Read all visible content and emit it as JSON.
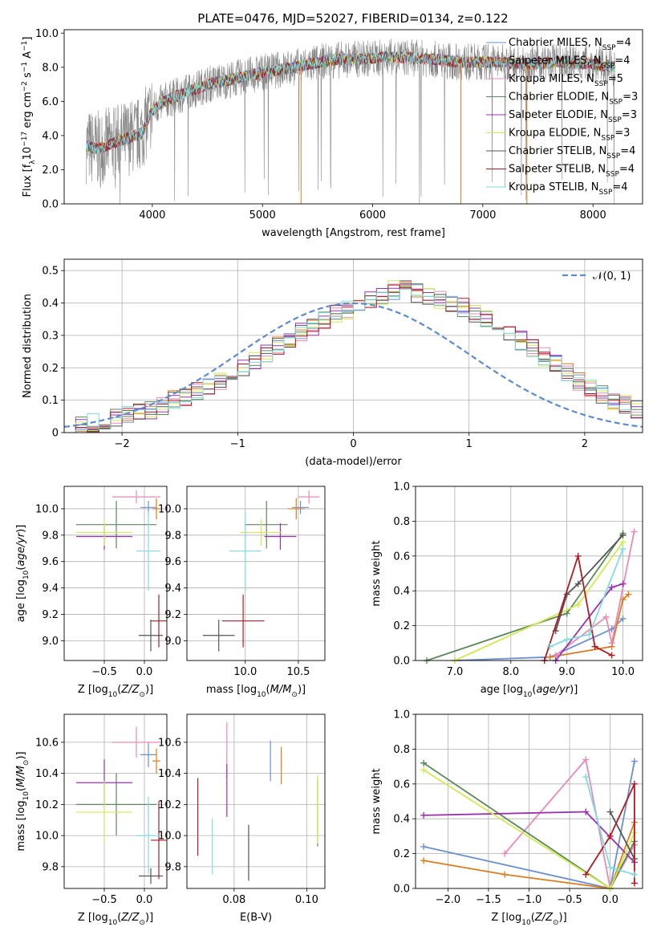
{
  "figure_title": "PLATE=0476, MJD=52027, FIBERID=0134, z=0.122",
  "colors": {
    "Chabrier MILES": "#6a8fd6",
    "Salpeter MILES": "#e07b1a",
    "Kroupa MILES": "#e88ab8",
    "Chabrier ELODIE": "#5a8a5a",
    "Salpeter ELODIE": "#9b30b0",
    "Kroupa ELODIE": "#d2ea4e",
    "Chabrier STELIB": "#555555",
    "Salpeter STELIB": "#b01c24",
    "Kroupa STELIB": "#7fdde0"
  },
  "chart_data": [
    {
      "id": "spectrum",
      "type": "line",
      "xlabel": "wavelength [Angstrom, rest frame]",
      "ylabel": "Flux [f_λ 10^-17 erg cm^-2 s^-1 A^-1]",
      "xlim": [
        3200,
        8450
      ],
      "ylim": [
        0,
        10.2
      ],
      "xticks": [
        4000,
        5000,
        6000,
        7000,
        8000
      ],
      "yticks": [
        0,
        2,
        4,
        6,
        8,
        10
      ],
      "data_color": "#888888",
      "continuum": {
        "x": [
          3400,
          3500,
          3700,
          3900,
          4000,
          4100,
          4300,
          4500,
          4800,
          5000,
          5300,
          5600,
          5900,
          6200,
          6500,
          6800,
          7100,
          7400,
          7700,
          8000,
          8200
        ],
        "y": [
          3.4,
          3.2,
          3.7,
          4.1,
          5.5,
          6.0,
          6.5,
          7.0,
          7.4,
          7.7,
          8.0,
          8.4,
          8.5,
          8.6,
          8.5,
          8.3,
          8.3,
          8.2,
          8.3,
          8.2,
          8.0
        ]
      },
      "legend_position": "upper right",
      "legend": [
        {
          "label": "Chabrier MILES, N",
          "sub": "SSP",
          "suffix": "=4",
          "color": "#6a8fd6"
        },
        {
          "label": "Salpeter MILES, N",
          "sub": "SSP",
          "suffix": "=4",
          "color": "#e07b1a"
        },
        {
          "label": "Kroupa MILES, N",
          "sub": "SSP",
          "suffix": "=5",
          "color": "#e88ab8"
        },
        {
          "label": "Chabrier ELODIE, N",
          "sub": "SSP",
          "suffix": "=3",
          "color": "#5a8a5a"
        },
        {
          "label": "Salpeter ELODIE, N",
          "sub": "SSP",
          "suffix": "=3",
          "color": "#9b30b0"
        },
        {
          "label": "Kroupa ELODIE, N",
          "sub": "SSP",
          "suffix": "=3",
          "color": "#d2ea4e"
        },
        {
          "label": "Chabrier STELIB, N",
          "sub": "SSP",
          "suffix": "=4",
          "color": "#555555"
        },
        {
          "label": "Salpeter STELIB, N",
          "sub": "SSP",
          "suffix": "=4",
          "color": "#b01c24"
        },
        {
          "label": "Kroupa STELIB, N",
          "sub": "SSP",
          "suffix": "=4",
          "color": "#7fdde0"
        }
      ]
    },
    {
      "id": "residuals",
      "type": "line",
      "xlabel": "(data-model)/error",
      "ylabel": "Normed distribution",
      "xlim": [
        -2.5,
        2.5
      ],
      "ylim": [
        0,
        0.535
      ],
      "xticks": [
        -2,
        -1,
        0,
        1,
        2
      ],
      "yticks": [
        0.0,
        0.1,
        0.2,
        0.3,
        0.4,
        0.5
      ],
      "grid": true,
      "gaussian_label": "𝒩(0, 1)",
      "gaussian_color": "#5b8bd4",
      "bin_width": 0.1,
      "bin_start": -2.5,
      "histogram": [
        0.02,
        0.025,
        0.03,
        0.035,
        0.045,
        0.055,
        0.06,
        0.07,
        0.085,
        0.1,
        0.11,
        0.125,
        0.14,
        0.16,
        0.18,
        0.2,
        0.22,
        0.245,
        0.27,
        0.29,
        0.31,
        0.33,
        0.35,
        0.365,
        0.38,
        0.395,
        0.41,
        0.425,
        0.44,
        0.45,
        0.43,
        0.415,
        0.41,
        0.4,
        0.385,
        0.37,
        0.35,
        0.33,
        0.31,
        0.285,
        0.26,
        0.235,
        0.21,
        0.185,
        0.16,
        0.14,
        0.12,
        0.1,
        0.085,
        0.07
      ]
    },
    {
      "id": "age_vs_Z",
      "type": "scatter",
      "xlabel": "Z [log10(Z/Z⊙)]",
      "ylabel": "age  [log10(age/yr)]",
      "xlim": [
        -1.0,
        0.28
      ],
      "ylim": [
        8.85,
        10.17
      ],
      "xticks": [
        -0.5,
        0.0
      ],
      "yticks": [
        9.0,
        9.2,
        9.4,
        9.6,
        9.8,
        10.0
      ],
      "grid": true,
      "points": [
        {
          "series": "Chabrier MILES",
          "x": 0.05,
          "y": 10.01,
          "xerr": 0.1,
          "yerr": 0.05
        },
        {
          "series": "Salpeter MILES",
          "x": 0.15,
          "y": 10.0,
          "xerr": 0.05,
          "yerr": 0.08
        },
        {
          "series": "Kroupa MILES",
          "x": -0.1,
          "y": 10.09,
          "xerr": 0.3,
          "yerr": 0.05
        },
        {
          "series": "Chabrier ELODIE",
          "x": -0.35,
          "y": 9.88,
          "xerr": 0.5,
          "yerr": 0.18
        },
        {
          "series": "Salpeter ELODIE",
          "x": -0.5,
          "y": 9.79,
          "xerr": 0.35,
          "yerr": 0.1
        },
        {
          "series": "Kroupa ELODIE",
          "x": -0.5,
          "y": 9.82,
          "xerr": 0.35,
          "yerr": 0.1
        },
        {
          "series": "Chabrier STELIB",
          "x": 0.08,
          "y": 9.04,
          "xerr": 0.15,
          "yerr": 0.12
        },
        {
          "series": "Salpeter STELIB",
          "x": 0.18,
          "y": 9.15,
          "xerr": 0.1,
          "yerr": 0.2
        },
        {
          "series": "Kroupa STELIB",
          "x": 0.05,
          "y": 9.68,
          "xerr": 0.15,
          "yerr": 0.3
        }
      ]
    },
    {
      "id": "age_vs_mass",
      "type": "scatter",
      "xlabel": "mass [log10(M/M⊙)]",
      "ylabel": "",
      "xlim": [
        9.45,
        10.75
      ],
      "ylim": [
        8.85,
        10.17
      ],
      "xticks": [
        10.0,
        10.5
      ],
      "yticks": [
        9.0,
        9.2,
        9.4,
        9.6,
        9.8,
        10.0
      ],
      "grid": true,
      "points": [
        {
          "series": "Chabrier MILES",
          "x": 10.52,
          "y": 10.01,
          "xerr": 0.08,
          "yerr": 0.05
        },
        {
          "series": "Salpeter MILES",
          "x": 10.48,
          "y": 10.0,
          "xerr": 0.08,
          "yerr": 0.08
        },
        {
          "series": "Kroupa MILES",
          "x": 10.6,
          "y": 10.09,
          "xerr": 0.1,
          "yerr": 0.05
        },
        {
          "series": "Chabrier ELODIE",
          "x": 10.2,
          "y": 9.88,
          "xerr": 0.2,
          "yerr": 0.18
        },
        {
          "series": "Salpeter ELODIE",
          "x": 10.33,
          "y": 9.79,
          "xerr": 0.15,
          "yerr": 0.1
        },
        {
          "series": "Kroupa ELODIE",
          "x": 10.15,
          "y": 9.82,
          "xerr": 0.2,
          "yerr": 0.1
        },
        {
          "series": "Chabrier STELIB",
          "x": 9.75,
          "y": 9.04,
          "xerr": 0.15,
          "yerr": 0.12
        },
        {
          "series": "Salpeter STELIB",
          "x": 9.98,
          "y": 9.15,
          "xerr": 0.2,
          "yerr": 0.2
        },
        {
          "series": "Kroupa STELIB",
          "x": 10.0,
          "y": 9.68,
          "xerr": 0.15,
          "yerr": 0.3
        }
      ]
    },
    {
      "id": "weight_vs_age",
      "type": "line",
      "xlabel": "age  [log10(age/yr)]",
      "ylabel": "mass weight",
      "xlim": [
        6.3,
        10.35
      ],
      "ylim": [
        0,
        1.0
      ],
      "xticks": [
        7,
        8,
        9,
        10
      ],
      "yticks": [
        0.0,
        0.2,
        0.4,
        0.6,
        0.8,
        1.0
      ],
      "grid": true,
      "series": [
        {
          "name": "Chabrier MILES",
          "x": [
            7.0,
            8.7,
            9.8,
            10.0
          ],
          "y": [
            0.0,
            0.02,
            0.18,
            0.24
          ]
        },
        {
          "name": "Salpeter MILES",
          "x": [
            8.7,
            9.8,
            10.0,
            10.1
          ],
          "y": [
            0.02,
            0.08,
            0.35,
            0.38
          ]
        },
        {
          "name": "Kroupa MILES",
          "x": [
            8.8,
            9.7,
            9.8,
            10.2
          ],
          "y": [
            0.03,
            0.25,
            0.1,
            0.74
          ]
        },
        {
          "name": "Chabrier ELODIE",
          "x": [
            6.5,
            9.0,
            10.0
          ],
          "y": [
            0.0,
            0.27,
            0.73
          ]
        },
        {
          "name": "Salpeter ELODIE",
          "x": [
            8.8,
            9.8,
            10.0
          ],
          "y": [
            0.0,
            0.42,
            0.44
          ]
        },
        {
          "name": "Kroupa ELODIE",
          "x": [
            7.0,
            9.2,
            10.0
          ],
          "y": [
            0.0,
            0.32,
            0.68
          ]
        },
        {
          "name": "Chabrier STELIB",
          "x": [
            8.8,
            9.0,
            9.2,
            10.0
          ],
          "y": [
            0.17,
            0.38,
            0.44,
            0.72
          ]
        },
        {
          "name": "Salpeter STELIB",
          "x": [
            8.6,
            9.2,
            9.5,
            9.8
          ],
          "y": [
            0.0,
            0.6,
            0.08,
            0.03
          ]
        },
        {
          "name": "Kroupa STELIB",
          "x": [
            8.7,
            9.0,
            9.4,
            10.0
          ],
          "y": [
            0.08,
            0.12,
            0.15,
            0.64
          ]
        }
      ]
    },
    {
      "id": "mass_vs_Z",
      "type": "scatter",
      "xlabel": "Z [log10(Z/Z⊙)]",
      "ylabel": "mass [log10(M/M⊙)]",
      "xlim": [
        -1.0,
        0.28
      ],
      "ylim": [
        9.66,
        10.78
      ],
      "xticks": [
        -0.5,
        0.0
      ],
      "yticks": [
        9.8,
        10.0,
        10.2,
        10.4,
        10.6
      ],
      "grid": true,
      "points": [
        {
          "series": "Chabrier MILES",
          "x": 0.05,
          "y": 10.52,
          "xerr": 0.1,
          "yerr": 0.08
        },
        {
          "series": "Salpeter MILES",
          "x": 0.15,
          "y": 10.48,
          "xerr": 0.05,
          "yerr": 0.08
        },
        {
          "series": "Kroupa MILES",
          "x": -0.1,
          "y": 10.6,
          "xerr": 0.3,
          "yerr": 0.1
        },
        {
          "series": "Chabrier ELODIE",
          "x": -0.35,
          "y": 10.2,
          "xerr": 0.5,
          "yerr": 0.2
        },
        {
          "series": "Salpeter ELODIE",
          "x": -0.5,
          "y": 10.34,
          "xerr": 0.35,
          "yerr": 0.15
        },
        {
          "series": "Kroupa ELODIE",
          "x": -0.5,
          "y": 10.15,
          "xerr": 0.35,
          "yerr": 0.2
        },
        {
          "series": "Chabrier STELIB",
          "x": 0.08,
          "y": 9.74,
          "xerr": 0.15,
          "yerr": 0.05
        },
        {
          "series": "Salpeter STELIB",
          "x": 0.18,
          "y": 9.97,
          "xerr": 0.1,
          "yerr": 0.25
        },
        {
          "series": "Kroupa STELIB",
          "x": 0.05,
          "y": 10.0,
          "xerr": 0.15,
          "yerr": 0.25
        }
      ]
    },
    {
      "id": "mass_vs_ebv",
      "type": "scatter",
      "xlabel": "E(B-V)",
      "ylabel": "",
      "xlim": [
        0.067,
        0.105
      ],
      "ylim": [
        9.66,
        10.78
      ],
      "xticks": [
        0.08,
        0.1
      ],
      "yticks": [
        9.8,
        10.0,
        10.2,
        10.4,
        10.6
      ],
      "grid": true,
      "points": [
        {
          "series": "Chabrier MILES",
          "x": 0.09,
          "y": 10.48,
          "xerr": 0,
          "yerr": 0.13
        },
        {
          "series": "Salpeter MILES",
          "x": 0.093,
          "y": 10.45,
          "xerr": 0,
          "yerr": 0.12
        },
        {
          "series": "Kroupa MILES",
          "x": 0.078,
          "y": 10.55,
          "xerr": 0,
          "yerr": 0.18
        },
        {
          "series": "Chabrier ELODIE",
          "x": 0.103,
          "y": 10.15,
          "xerr": 0,
          "yerr": 0.22
        },
        {
          "series": "Salpeter ELODIE",
          "x": 0.078,
          "y": 10.29,
          "xerr": 0,
          "yerr": 0.17
        },
        {
          "series": "Kroupa ELODIE",
          "x": 0.103,
          "y": 10.17,
          "xerr": 0,
          "yerr": 0.22
        },
        {
          "series": "Chabrier STELIB",
          "x": 0.084,
          "y": 9.89,
          "xerr": 0,
          "yerr": 0.18
        },
        {
          "series": "Salpeter STELIB",
          "x": 0.07,
          "y": 10.12,
          "xerr": 0,
          "yerr": 0.25
        },
        {
          "series": "Kroupa STELIB",
          "x": 0.074,
          "y": 9.93,
          "xerr": 0,
          "yerr": 0.18
        }
      ]
    },
    {
      "id": "weight_vs_Z",
      "type": "line",
      "xlabel": "Z [log10(Z/Z⊙)]",
      "ylabel": "mass weight",
      "xlim": [
        -2.4,
        0.4
      ],
      "ylim": [
        0,
        1.0
      ],
      "xticks": [
        -2.0,
        -1.5,
        -1.0,
        -0.5,
        0.0
      ],
      "yticks": [
        0.0,
        0.2,
        0.4,
        0.6,
        0.8,
        1.0
      ],
      "grid": true,
      "series": [
        {
          "name": "Chabrier MILES",
          "x": [
            -2.3,
            0.0,
            0.3
          ],
          "y": [
            0.24,
            0.0,
            0.73
          ]
        },
        {
          "name": "Salpeter MILES",
          "x": [
            -2.3,
            -1.3,
            0.0,
            0.3
          ],
          "y": [
            0.16,
            0.08,
            0.0,
            0.38
          ]
        },
        {
          "name": "Kroupa MILES",
          "x": [
            -1.3,
            -0.3,
            0.0,
            0.3
          ],
          "y": [
            0.2,
            0.74,
            0.0,
            0.25
          ]
        },
        {
          "name": "Chabrier ELODIE",
          "x": [
            -2.3,
            0.0,
            0.3
          ],
          "y": [
            0.72,
            0.0,
            0.27
          ]
        },
        {
          "name": "Salpeter ELODIE",
          "x": [
            -2.3,
            -0.3,
            0.3
          ],
          "y": [
            0.42,
            0.44,
            0.15
          ]
        },
        {
          "name": "Kroupa ELODIE",
          "x": [
            -2.3,
            0.0,
            0.3
          ],
          "y": [
            0.68,
            0.0,
            0.32
          ]
        },
        {
          "name": "Chabrier STELIB",
          "x": [
            0.0,
            0.3
          ],
          "y": [
            0.44,
            0.17
          ]
        },
        {
          "name": "Salpeter STELIB",
          "x": [
            -0.3,
            0.0,
            0.3,
            0.3
          ],
          "y": [
            0.08,
            0.3,
            0.6,
            0.03
          ]
        },
        {
          "name": "Kroupa STELIB",
          "x": [
            -0.3,
            0.0,
            0.3
          ],
          "y": [
            0.64,
            0.12,
            0.08
          ]
        }
      ]
    }
  ]
}
